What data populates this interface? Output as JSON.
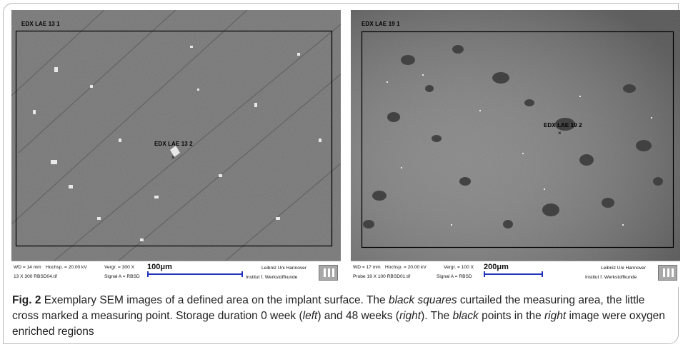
{
  "left_image": {
    "top_label": "EDX LAE 13 1",
    "point_label": "EDX LAE 13 2",
    "info": {
      "wd": "WD = 14 mm",
      "hochsp": "Hochsp. = 20.00 kV",
      "vergr": "Vergr. = 300 X",
      "file": "13 X 300 RBSD04.tif",
      "signal": "Signal A = RBSD",
      "scale": "100μm",
      "inst1": "Leibniz Uni Hannover",
      "inst2": "Institut f. Werkstoffkunde"
    }
  },
  "right_image": {
    "top_label": "EDX LAE 19 1",
    "point_label": "EDX LAE 19 2",
    "info": {
      "wd": "WD = 17 mm",
      "hochsp": "Hochsp. = 20.00 kV",
      "vergr": "Vergr. = 100 X",
      "file": "Probe 19 X 100 RBSD01.tif",
      "signal": "Signal A = RBSD",
      "scale": "200μm",
      "inst1": "Leibniz Uni Hannover",
      "inst2": "Institut f. Werkstoffkunde"
    }
  },
  "caption": {
    "fig_label": "Fig. 2",
    "t1": "  Exemplary SEM images of a defined area on the implant surface. The ",
    "e1": "black squares",
    "t2": " curtailed the measuring area, the little cross marked a measuring point. Storage duration 0 week (",
    "e2": "left",
    "t3": ") and 48 weeks (",
    "e3": "right",
    "t4": "). The ",
    "e4": "black",
    "t5": " points in the ",
    "e5": "right",
    "t6": " image were oxygen enriched regions"
  }
}
